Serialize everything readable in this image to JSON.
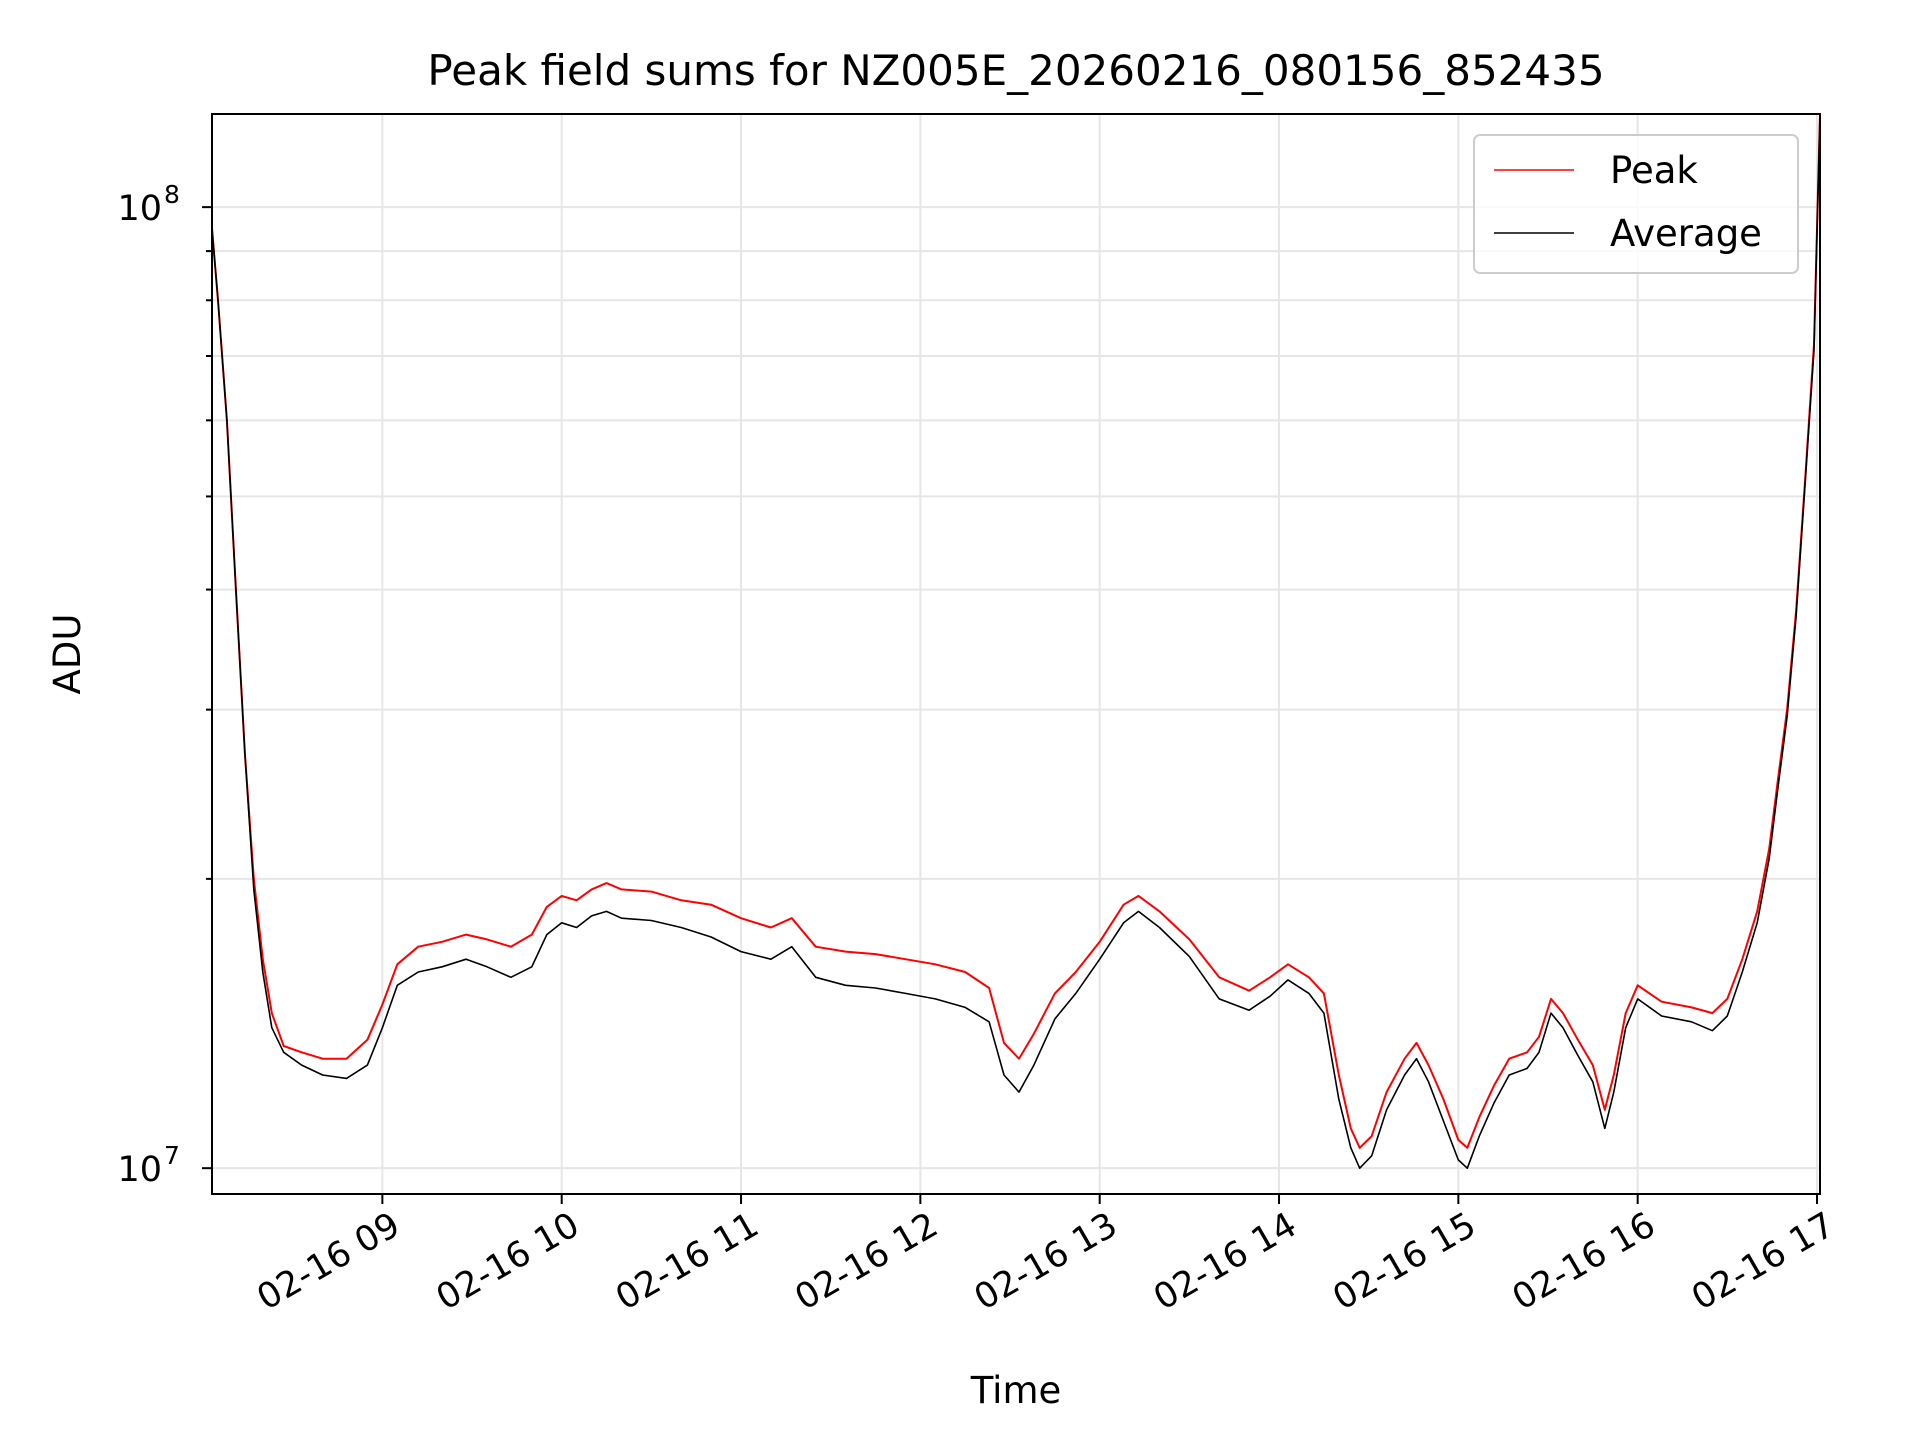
{
  "chart_data": {
    "type": "line",
    "title": "Peak field sums for NZ005E_20260216_080156_852435",
    "xlabel": "Time",
    "ylabel": "ADU",
    "yscale": "log",
    "ylim": [
      9400000,
      125000000
    ],
    "xlim": [
      "2026-02-16 08:03",
      "2026-02-16 17:01"
    ],
    "x_ticks": [
      "2026-02-16 09:00",
      "2026-02-16 10:00",
      "2026-02-16 11:00",
      "2026-02-16 12:00",
      "2026-02-16 13:00",
      "2026-02-16 14:00",
      "2026-02-16 15:00",
      "2026-02-16 16:00",
      "2026-02-16 17:00"
    ],
    "x_tick_labels": [
      "02-16 09",
      "02-16 10",
      "02-16 11",
      "02-16 12",
      "02-16 13",
      "02-16 14",
      "02-16 15",
      "02-16 16",
      "02-16 17"
    ],
    "y_ticks": [
      10000000,
      100000000
    ],
    "y_tick_labels": [
      {
        "base": "10",
        "exp": "7"
      },
      {
        "base": "10",
        "exp": "8"
      }
    ],
    "grid": true,
    "legend_position": "top-right",
    "series": [
      {
        "name": "Peak",
        "color": "#ff0000",
        "points": [
          [
            "2026-02-16 08:03",
            95000000
          ],
          [
            "2026-02-16 08:05",
            80000000
          ],
          [
            "2026-02-16 08:08",
            60000000
          ],
          [
            "2026-02-16 08:11",
            40000000
          ],
          [
            "2026-02-16 08:14",
            27000000
          ],
          [
            "2026-02-16 08:17",
            20000000
          ],
          [
            "2026-02-16 08:20",
            16500000
          ],
          [
            "2026-02-16 08:23",
            14500000
          ],
          [
            "2026-02-16 08:27",
            13400000
          ],
          [
            "2026-02-16 08:33",
            13200000
          ],
          [
            "2026-02-16 08:40",
            13000000
          ],
          [
            "2026-02-16 08:48",
            13000000
          ],
          [
            "2026-02-16 08:55",
            13600000
          ],
          [
            "2026-02-16 09:00",
            14800000
          ],
          [
            "2026-02-16 09:05",
            16300000
          ],
          [
            "2026-02-16 09:12",
            17000000
          ],
          [
            "2026-02-16 09:20",
            17200000
          ],
          [
            "2026-02-16 09:28",
            17500000
          ],
          [
            "2026-02-16 09:35",
            17300000
          ],
          [
            "2026-02-16 09:43",
            17000000
          ],
          [
            "2026-02-16 09:50",
            17500000
          ],
          [
            "2026-02-16 09:55",
            18700000
          ],
          [
            "2026-02-16 10:00",
            19200000
          ],
          [
            "2026-02-16 10:05",
            19000000
          ],
          [
            "2026-02-16 10:10",
            19500000
          ],
          [
            "2026-02-16 10:15",
            19800000
          ],
          [
            "2026-02-16 10:20",
            19500000
          ],
          [
            "2026-02-16 10:30",
            19400000
          ],
          [
            "2026-02-16 10:40",
            19000000
          ],
          [
            "2026-02-16 10:50",
            18800000
          ],
          [
            "2026-02-16 11:00",
            18200000
          ],
          [
            "2026-02-16 11:10",
            17800000
          ],
          [
            "2026-02-16 11:17",
            18200000
          ],
          [
            "2026-02-16 11:25",
            17000000
          ],
          [
            "2026-02-16 11:35",
            16800000
          ],
          [
            "2026-02-16 11:45",
            16700000
          ],
          [
            "2026-02-16 11:55",
            16500000
          ],
          [
            "2026-02-16 12:05",
            16300000
          ],
          [
            "2026-02-16 12:15",
            16000000
          ],
          [
            "2026-02-16 12:23",
            15400000
          ],
          [
            "2026-02-16 12:28",
            13500000
          ],
          [
            "2026-02-16 12:33",
            13000000
          ],
          [
            "2026-02-16 12:38",
            13800000
          ],
          [
            "2026-02-16 12:45",
            15200000
          ],
          [
            "2026-02-16 12:52",
            16000000
          ],
          [
            "2026-02-16 13:00",
            17200000
          ],
          [
            "2026-02-16 13:08",
            18800000
          ],
          [
            "2026-02-16 13:13",
            19200000
          ],
          [
            "2026-02-16 13:20",
            18500000
          ],
          [
            "2026-02-16 13:30",
            17300000
          ],
          [
            "2026-02-16 13:40",
            15800000
          ],
          [
            "2026-02-16 13:50",
            15300000
          ],
          [
            "2026-02-16 13:57",
            15800000
          ],
          [
            "2026-02-16 14:03",
            16300000
          ],
          [
            "2026-02-16 14:10",
            15800000
          ],
          [
            "2026-02-16 14:15",
            15200000
          ],
          [
            "2026-02-16 14:20",
            12500000
          ],
          [
            "2026-02-16 14:24",
            11000000
          ],
          [
            "2026-02-16 14:27",
            10500000
          ],
          [
            "2026-02-16 14:31",
            10800000
          ],
          [
            "2026-02-16 14:36",
            12000000
          ],
          [
            "2026-02-16 14:42",
            13000000
          ],
          [
            "2026-02-16 14:46",
            13500000
          ],
          [
            "2026-02-16 14:50",
            12800000
          ],
          [
            "2026-02-16 14:55",
            11800000
          ],
          [
            "2026-02-16 15:00",
            10700000
          ],
          [
            "2026-02-16 15:03",
            10500000
          ],
          [
            "2026-02-16 15:07",
            11300000
          ],
          [
            "2026-02-16 15:12",
            12200000
          ],
          [
            "2026-02-16 15:17",
            13000000
          ],
          [
            "2026-02-16 15:23",
            13200000
          ],
          [
            "2026-02-16 15:27",
            13700000
          ],
          [
            "2026-02-16 15:31",
            15000000
          ],
          [
            "2026-02-16 15:35",
            14500000
          ],
          [
            "2026-02-16 15:40",
            13600000
          ],
          [
            "2026-02-16 15:45",
            12800000
          ],
          [
            "2026-02-16 15:49",
            11500000
          ],
          [
            "2026-02-16 15:52",
            12500000
          ],
          [
            "2026-02-16 15:56",
            14500000
          ],
          [
            "2026-02-16 16:00",
            15500000
          ],
          [
            "2026-02-16 16:08",
            14900000
          ],
          [
            "2026-02-16 16:18",
            14700000
          ],
          [
            "2026-02-16 16:25",
            14500000
          ],
          [
            "2026-02-16 16:30",
            15000000
          ],
          [
            "2026-02-16 16:35",
            16500000
          ],
          [
            "2026-02-16 16:40",
            18500000
          ],
          [
            "2026-02-16 16:44",
            21500000
          ],
          [
            "2026-02-16 16:47",
            25500000
          ],
          [
            "2026-02-16 16:50",
            30000000
          ],
          [
            "2026-02-16 16:53",
            38000000
          ],
          [
            "2026-02-16 16:56",
            52000000
          ],
          [
            "2026-02-16 16:59",
            72000000
          ],
          [
            "2026-02-16 17:01",
            125000000
          ]
        ]
      },
      {
        "name": "Average",
        "color": "#000000",
        "points": [
          [
            "2026-02-16 08:03",
            95000000
          ],
          [
            "2026-02-16 08:05",
            80000000
          ],
          [
            "2026-02-16 08:08",
            60000000
          ],
          [
            "2026-02-16 08:11",
            40000000
          ],
          [
            "2026-02-16 08:14",
            27000000
          ],
          [
            "2026-02-16 08:17",
            19500000
          ],
          [
            "2026-02-16 08:20",
            16000000
          ],
          [
            "2026-02-16 08:23",
            14000000
          ],
          [
            "2026-02-16 08:27",
            13200000
          ],
          [
            "2026-02-16 08:33",
            12800000
          ],
          [
            "2026-02-16 08:40",
            12500000
          ],
          [
            "2026-02-16 08:48",
            12400000
          ],
          [
            "2026-02-16 08:55",
            12800000
          ],
          [
            "2026-02-16 09:00",
            14000000
          ],
          [
            "2026-02-16 09:05",
            15500000
          ],
          [
            "2026-02-16 09:12",
            16000000
          ],
          [
            "2026-02-16 09:20",
            16200000
          ],
          [
            "2026-02-16 09:28",
            16500000
          ],
          [
            "2026-02-16 09:35",
            16200000
          ],
          [
            "2026-02-16 09:43",
            15800000
          ],
          [
            "2026-02-16 09:50",
            16200000
          ],
          [
            "2026-02-16 09:55",
            17500000
          ],
          [
            "2026-02-16 10:00",
            18000000
          ],
          [
            "2026-02-16 10:05",
            17800000
          ],
          [
            "2026-02-16 10:10",
            18300000
          ],
          [
            "2026-02-16 10:15",
            18500000
          ],
          [
            "2026-02-16 10:20",
            18200000
          ],
          [
            "2026-02-16 10:30",
            18100000
          ],
          [
            "2026-02-16 10:40",
            17800000
          ],
          [
            "2026-02-16 10:50",
            17400000
          ],
          [
            "2026-02-16 11:00",
            16800000
          ],
          [
            "2026-02-16 11:10",
            16500000
          ],
          [
            "2026-02-16 11:17",
            17000000
          ],
          [
            "2026-02-16 11:25",
            15800000
          ],
          [
            "2026-02-16 11:35",
            15500000
          ],
          [
            "2026-02-16 11:45",
            15400000
          ],
          [
            "2026-02-16 11:55",
            15200000
          ],
          [
            "2026-02-16 12:05",
            15000000
          ],
          [
            "2026-02-16 12:15",
            14700000
          ],
          [
            "2026-02-16 12:23",
            14200000
          ],
          [
            "2026-02-16 12:28",
            12500000
          ],
          [
            "2026-02-16 12:33",
            12000000
          ],
          [
            "2026-02-16 12:38",
            12800000
          ],
          [
            "2026-02-16 12:45",
            14300000
          ],
          [
            "2026-02-16 12:52",
            15200000
          ],
          [
            "2026-02-16 13:00",
            16500000
          ],
          [
            "2026-02-16 13:08",
            18000000
          ],
          [
            "2026-02-16 13:13",
            18500000
          ],
          [
            "2026-02-16 13:20",
            17800000
          ],
          [
            "2026-02-16 13:30",
            16600000
          ],
          [
            "2026-02-16 13:40",
            15000000
          ],
          [
            "2026-02-16 13:50",
            14600000
          ],
          [
            "2026-02-16 13:57",
            15100000
          ],
          [
            "2026-02-16 14:03",
            15700000
          ],
          [
            "2026-02-16 14:10",
            15200000
          ],
          [
            "2026-02-16 14:15",
            14500000
          ],
          [
            "2026-02-16 14:20",
            11800000
          ],
          [
            "2026-02-16 14:24",
            10500000
          ],
          [
            "2026-02-16 14:27",
            10000000
          ],
          [
            "2026-02-16 14:31",
            10300000
          ],
          [
            "2026-02-16 14:36",
            11500000
          ],
          [
            "2026-02-16 14:42",
            12500000
          ],
          [
            "2026-02-16 14:46",
            13000000
          ],
          [
            "2026-02-16 14:50",
            12300000
          ],
          [
            "2026-02-16 14:55",
            11200000
          ],
          [
            "2026-02-16 15:00",
            10200000
          ],
          [
            "2026-02-16 15:03",
            10000000
          ],
          [
            "2026-02-16 15:07",
            10800000
          ],
          [
            "2026-02-16 15:12",
            11700000
          ],
          [
            "2026-02-16 15:17",
            12500000
          ],
          [
            "2026-02-16 15:23",
            12700000
          ],
          [
            "2026-02-16 15:27",
            13200000
          ],
          [
            "2026-02-16 15:31",
            14500000
          ],
          [
            "2026-02-16 15:35",
            14000000
          ],
          [
            "2026-02-16 15:40",
            13100000
          ],
          [
            "2026-02-16 15:45",
            12300000
          ],
          [
            "2026-02-16 15:49",
            11000000
          ],
          [
            "2026-02-16 15:52",
            12000000
          ],
          [
            "2026-02-16 15:56",
            14000000
          ],
          [
            "2026-02-16 16:00",
            15000000
          ],
          [
            "2026-02-16 16:08",
            14400000
          ],
          [
            "2026-02-16 16:18",
            14200000
          ],
          [
            "2026-02-16 16:25",
            13900000
          ],
          [
            "2026-02-16 16:30",
            14400000
          ],
          [
            "2026-02-16 16:35",
            16000000
          ],
          [
            "2026-02-16 16:40",
            18000000
          ],
          [
            "2026-02-16 16:44",
            21000000
          ],
          [
            "2026-02-16 16:47",
            25000000
          ],
          [
            "2026-02-16 16:50",
            29500000
          ],
          [
            "2026-02-16 16:53",
            37500000
          ],
          [
            "2026-02-16 16:56",
            51500000
          ],
          [
            "2026-02-16 16:59",
            71000000
          ],
          [
            "2026-02-16 17:01",
            125000000
          ]
        ]
      }
    ]
  }
}
